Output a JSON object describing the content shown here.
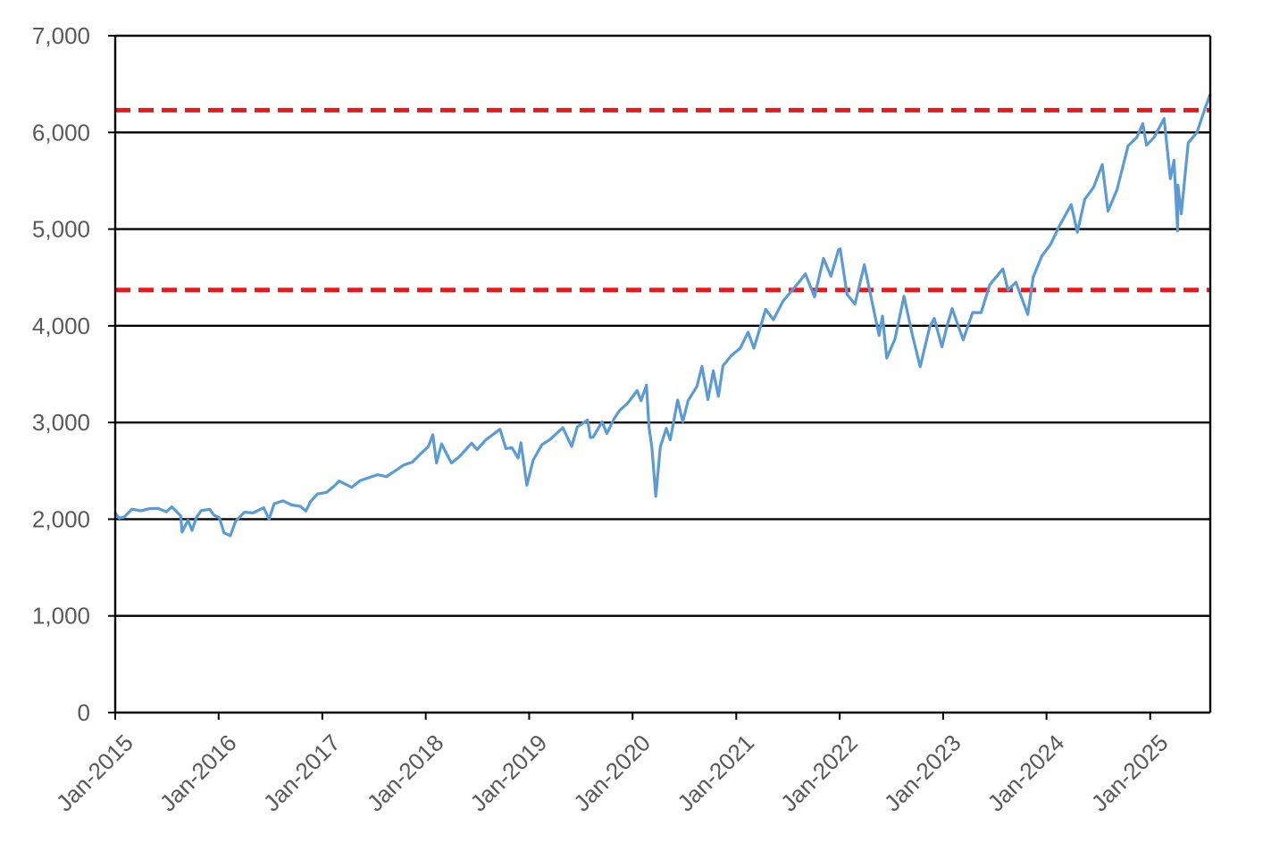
{
  "chart_data": {
    "type": "line",
    "title": "",
    "xlabel": "",
    "ylabel": "",
    "ylim": [
      0,
      7000
    ],
    "xlim": [
      "2015-01-01",
      "2025-08-01"
    ],
    "grid": true,
    "legend": "none",
    "y_ticks": [
      {
        "value": 0,
        "label": "0"
      },
      {
        "value": 1000,
        "label": "1,000"
      },
      {
        "value": 2000,
        "label": "2,000"
      },
      {
        "value": 3000,
        "label": "3,000"
      },
      {
        "value": 4000,
        "label": "4,000"
      },
      {
        "value": 5000,
        "label": "5,000"
      },
      {
        "value": 6000,
        "label": "6,000"
      },
      {
        "value": 7000,
        "label": "7,000"
      }
    ],
    "x_ticks": [
      {
        "date": "2015-01-01",
        "label": "Jan-2015"
      },
      {
        "date": "2016-01-01",
        "label": "Jan-2016"
      },
      {
        "date": "2017-01-01",
        "label": "Jan-2017"
      },
      {
        "date": "2018-01-01",
        "label": "Jan-2018"
      },
      {
        "date": "2019-01-01",
        "label": "Jan-2019"
      },
      {
        "date": "2020-01-01",
        "label": "Jan-2020"
      },
      {
        "date": "2021-01-01",
        "label": "Jan-2021"
      },
      {
        "date": "2022-01-01",
        "label": "Jan-2022"
      },
      {
        "date": "2023-01-01",
        "label": "Jan-2023"
      },
      {
        "date": "2024-01-01",
        "label": "Jan-2024"
      },
      {
        "date": "2025-01-01",
        "label": "Jan-2025"
      }
    ],
    "reference_lines": [
      {
        "y": 6230,
        "color": "#e8191b",
        "style": "dashed"
      },
      {
        "y": 4370,
        "color": "#e8191b",
        "style": "dashed"
      }
    ],
    "series": [
      {
        "color": "#5b9bd5",
        "points": [
          [
            "2015-01-02",
            2058
          ],
          [
            "2015-01-15",
            2011
          ],
          [
            "2015-02-01",
            2021
          ],
          [
            "2015-03-01",
            2104
          ],
          [
            "2015-04-01",
            2086
          ],
          [
            "2015-05-01",
            2108
          ],
          [
            "2015-06-01",
            2111
          ],
          [
            "2015-07-01",
            2077
          ],
          [
            "2015-07-20",
            2128
          ],
          [
            "2015-08-20",
            2035
          ],
          [
            "2015-08-25",
            1867
          ],
          [
            "2015-09-15",
            1990
          ],
          [
            "2015-09-29",
            1884
          ],
          [
            "2015-10-15",
            2020
          ],
          [
            "2015-11-01",
            2090
          ],
          [
            "2015-12-01",
            2102
          ],
          [
            "2015-12-15",
            2043
          ],
          [
            "2016-01-04",
            2012
          ],
          [
            "2016-01-20",
            1859
          ],
          [
            "2016-02-11",
            1829
          ],
          [
            "2016-03-01",
            1978
          ],
          [
            "2016-04-01",
            2072
          ],
          [
            "2016-05-01",
            2065
          ],
          [
            "2016-06-08",
            2119
          ],
          [
            "2016-06-27",
            2000
          ],
          [
            "2016-07-15",
            2160
          ],
          [
            "2016-08-15",
            2190
          ],
          [
            "2016-09-15",
            2147
          ],
          [
            "2016-10-15",
            2133
          ],
          [
            "2016-11-04",
            2085
          ],
          [
            "2016-11-20",
            2181
          ],
          [
            "2016-12-15",
            2262
          ],
          [
            "2017-01-15",
            2275
          ],
          [
            "2017-02-15",
            2350
          ],
          [
            "2017-03-01",
            2395
          ],
          [
            "2017-04-15",
            2329
          ],
          [
            "2017-05-15",
            2400
          ],
          [
            "2017-06-15",
            2430
          ],
          [
            "2017-07-15",
            2460
          ],
          [
            "2017-08-15",
            2440
          ],
          [
            "2017-09-15",
            2500
          ],
          [
            "2017-10-15",
            2560
          ],
          [
            "2017-11-15",
            2590
          ],
          [
            "2017-12-15",
            2680
          ],
          [
            "2018-01-10",
            2750
          ],
          [
            "2018-01-26",
            2873
          ],
          [
            "2018-02-08",
            2581
          ],
          [
            "2018-02-26",
            2780
          ],
          [
            "2018-03-22",
            2640
          ],
          [
            "2018-04-02",
            2581
          ],
          [
            "2018-05-01",
            2650
          ],
          [
            "2018-06-12",
            2786
          ],
          [
            "2018-07-01",
            2720
          ],
          [
            "2018-08-01",
            2820
          ],
          [
            "2018-09-20",
            2930
          ],
          [
            "2018-10-11",
            2730
          ],
          [
            "2018-11-01",
            2740
          ],
          [
            "2018-11-23",
            2632
          ],
          [
            "2018-12-03",
            2790
          ],
          [
            "2018-12-24",
            2351
          ],
          [
            "2019-01-15",
            2610
          ],
          [
            "2019-02-15",
            2770
          ],
          [
            "2019-03-15",
            2822
          ],
          [
            "2019-04-30",
            2946
          ],
          [
            "2019-05-31",
            2752
          ],
          [
            "2019-06-20",
            2954
          ],
          [
            "2019-07-26",
            3025
          ],
          [
            "2019-08-05",
            2844
          ],
          [
            "2019-08-15",
            2850
          ],
          [
            "2019-09-15",
            3007
          ],
          [
            "2019-10-02",
            2887
          ],
          [
            "2019-10-28",
            3039
          ],
          [
            "2019-11-15",
            3120
          ],
          [
            "2019-12-15",
            3200
          ],
          [
            "2020-01-17",
            3330
          ],
          [
            "2020-01-31",
            3225
          ],
          [
            "2020-02-19",
            3386
          ],
          [
            "2020-02-28",
            2954
          ],
          [
            "2020-03-09",
            2746
          ],
          [
            "2020-03-23",
            2237
          ],
          [
            "2020-04-08",
            2749
          ],
          [
            "2020-04-29",
            2939
          ],
          [
            "2020-05-13",
            2820
          ],
          [
            "2020-06-08",
            3232
          ],
          [
            "2020-06-26",
            3009
          ],
          [
            "2020-07-15",
            3226
          ],
          [
            "2020-08-15",
            3372
          ],
          [
            "2020-09-02",
            3580
          ],
          [
            "2020-09-23",
            3237
          ],
          [
            "2020-10-12",
            3534
          ],
          [
            "2020-10-30",
            3270
          ],
          [
            "2020-11-15",
            3585
          ],
          [
            "2020-12-15",
            3694
          ],
          [
            "2021-01-15",
            3768
          ],
          [
            "2021-02-12",
            3934
          ],
          [
            "2021-03-04",
            3768
          ],
          [
            "2021-04-15",
            4170
          ],
          [
            "2021-05-12",
            4063
          ],
          [
            "2021-06-15",
            4255
          ],
          [
            "2021-07-15",
            4360
          ],
          [
            "2021-08-15",
            4468
          ],
          [
            "2021-09-02",
            4537
          ],
          [
            "2021-10-04",
            4300
          ],
          [
            "2021-11-05",
            4697
          ],
          [
            "2021-12-01",
            4513
          ],
          [
            "2021-12-28",
            4786
          ],
          [
            "2022-01-03",
            4796
          ],
          [
            "2022-01-27",
            4326
          ],
          [
            "2022-02-24",
            4225
          ],
          [
            "2022-03-29",
            4631
          ],
          [
            "2022-04-15",
            4392
          ],
          [
            "2022-05-20",
            3900
          ],
          [
            "2022-06-01",
            4101
          ],
          [
            "2022-06-16",
            3666
          ],
          [
            "2022-07-15",
            3863
          ],
          [
            "2022-08-16",
            4305
          ],
          [
            "2022-09-15",
            3901
          ],
          [
            "2022-10-12",
            3577
          ],
          [
            "2022-11-15",
            3991
          ],
          [
            "2022-12-01",
            4076
          ],
          [
            "2022-12-28",
            3783
          ],
          [
            "2023-01-15",
            3999
          ],
          [
            "2023-02-02",
            4179
          ],
          [
            "2023-03-13",
            3855
          ],
          [
            "2023-04-15",
            4137
          ],
          [
            "2023-05-15",
            4136
          ],
          [
            "2023-06-15",
            4425
          ],
          [
            "2023-07-31",
            4589
          ],
          [
            "2023-08-18",
            4370
          ],
          [
            "2023-09-15",
            4450
          ],
          [
            "2023-10-27",
            4117
          ],
          [
            "2023-11-15",
            4502
          ],
          [
            "2023-12-15",
            4719
          ],
          [
            "2024-01-15",
            4840
          ],
          [
            "2024-02-15",
            5029
          ],
          [
            "2024-03-28",
            5254
          ],
          [
            "2024-04-19",
            4967
          ],
          [
            "2024-05-15",
            5308
          ],
          [
            "2024-06-15",
            5431
          ],
          [
            "2024-07-16",
            5667
          ],
          [
            "2024-08-05",
            5186
          ],
          [
            "2024-09-06",
            5408
          ],
          [
            "2024-10-15",
            5860
          ],
          [
            "2024-11-15",
            5950
          ],
          [
            "2024-12-06",
            6090
          ],
          [
            "2024-12-19",
            5867
          ],
          [
            "2025-01-15",
            5950
          ],
          [
            "2025-02-19",
            6144
          ],
          [
            "2025-03-13",
            5521
          ],
          [
            "2025-03-26",
            5712
          ],
          [
            "2025-04-08",
            4982
          ],
          [
            "2025-04-09",
            5456
          ],
          [
            "2025-04-21",
            5158
          ],
          [
            "2025-05-15",
            5892
          ],
          [
            "2025-06-15",
            6000
          ],
          [
            "2025-07-15",
            6260
          ],
          [
            "2025-07-31",
            6389
          ]
        ]
      }
    ]
  }
}
